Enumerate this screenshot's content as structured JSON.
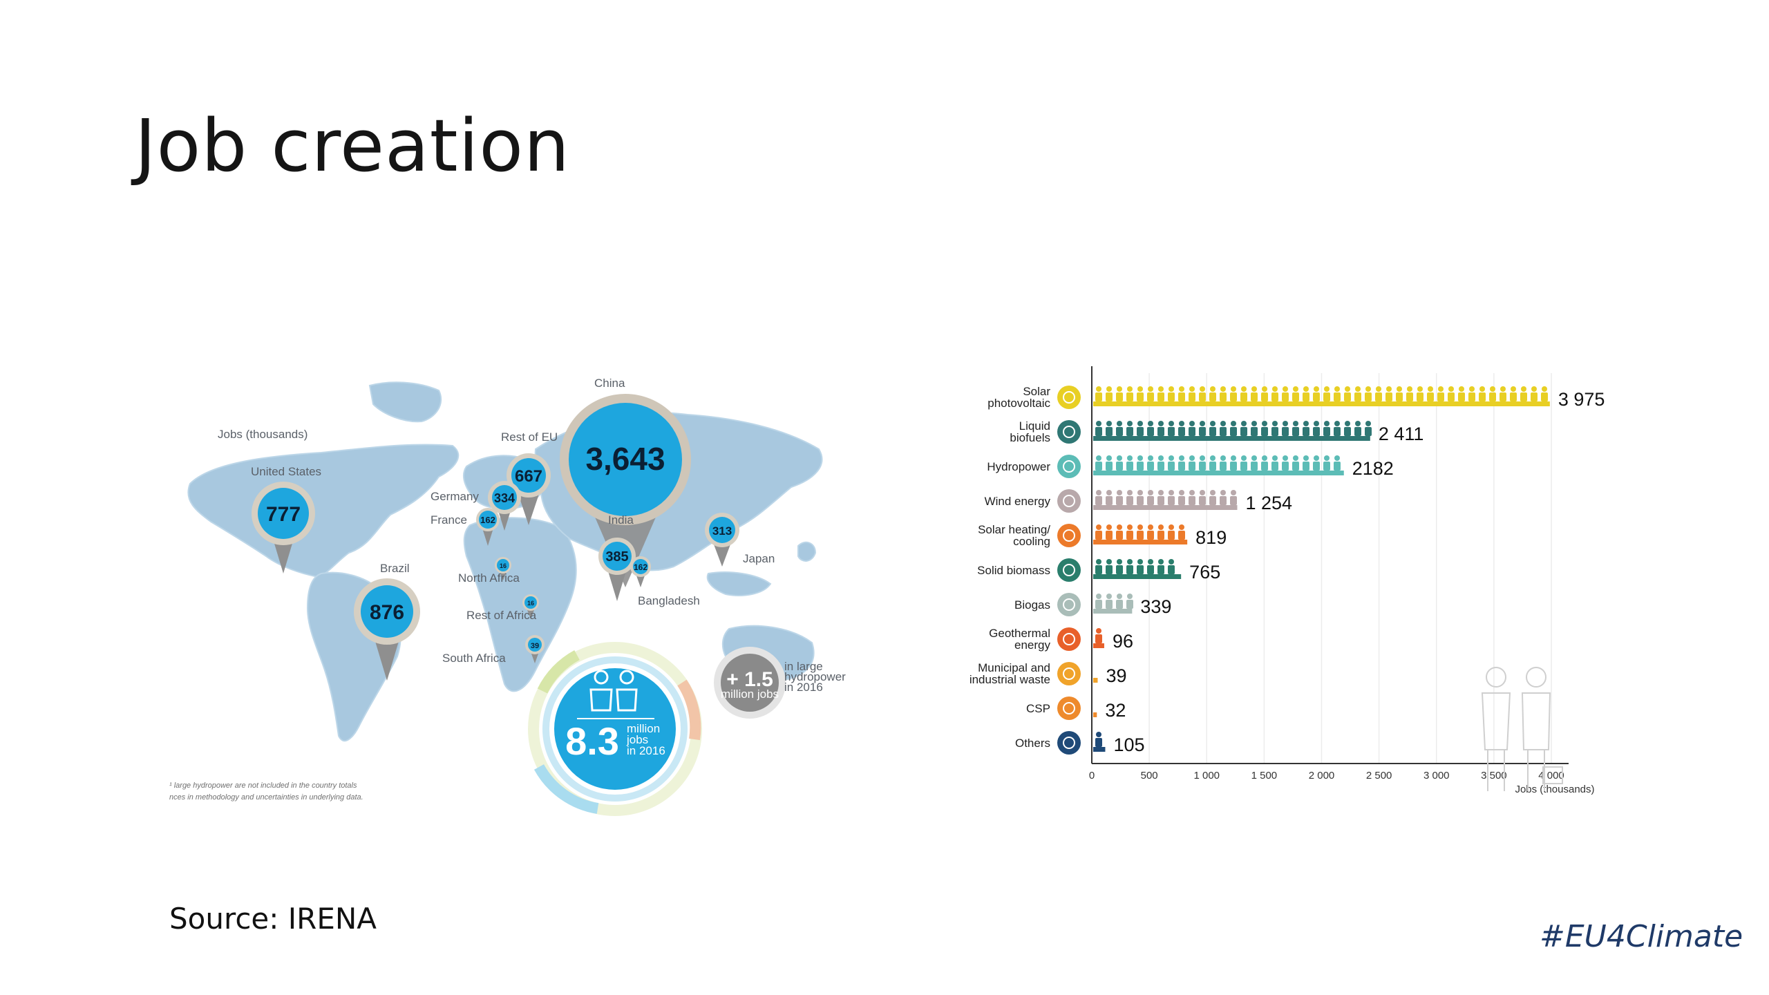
{
  "slide": {
    "title": "Job creation",
    "source": "Source: IRENA",
    "hashtag": "#EU4Climate"
  },
  "map": {
    "legend": "Jobs (thousands)",
    "regions": [
      {
        "name": "China",
        "value": "3,643",
        "icon": "map-pin-icon",
        "color": "#1ea6de"
      },
      {
        "name": "United States",
        "value": "777",
        "icon": "map-pin-icon"
      },
      {
        "name": "Brazil",
        "value": "876",
        "icon": "map-pin-icon"
      },
      {
        "name": "Rest of EU",
        "value": "667",
        "icon": "map-pin-icon"
      },
      {
        "name": "Germany",
        "value": "334",
        "icon": "map-pin-icon"
      },
      {
        "name": "France",
        "value": "162",
        "icon": "map-pin-icon"
      },
      {
        "name": "India",
        "value": "385",
        "icon": "map-pin-icon"
      },
      {
        "name": "Bangladesh",
        "value": "162",
        "icon": "map-pin-icon"
      },
      {
        "name": "Japan",
        "value": "313",
        "icon": "map-pin-icon"
      },
      {
        "name": "North Africa",
        "value": "16",
        "icon": "map-pin-icon"
      },
      {
        "name": "Rest of Africa",
        "value": "16",
        "icon": "map-pin-icon"
      },
      {
        "name": "South Africa",
        "value": "39",
        "icon": "map-pin-icon"
      }
    ],
    "total": {
      "value": "8.3",
      "line1": "million",
      "line2": "jobs",
      "line3": "in 2016",
      "icon": "workers-icon"
    },
    "extra": {
      "value": "+ 1.5",
      "sub": "million jobs",
      "line1": "in large",
      "line2": "hydropower",
      "line3": "in 2016"
    },
    "note1": "¹ large hydropower are not included in the country totals",
    "note2": "nces in methodology and uncertainties in underlying data."
  },
  "colors": {
    "ocean_pin": "#1ea6de",
    "map_land": "#a8c8df",
    "pin_shadow": "#8f8f8f",
    "hashtag": "#1f3a68"
  },
  "chart_data": {
    "type": "bar",
    "orientation": "horizontal",
    "categories": [
      "Solar photovoltaic",
      "Liquid biofuels",
      "Hydropower",
      "Wind energy",
      "Solar heating/ cooling",
      "Solid biomass",
      "Biogas",
      "Geothermal energy",
      "Municipal and industrial waste",
      "CSP",
      "Others"
    ],
    "values": [
      3975,
      2411,
      2182,
      1254,
      819,
      765,
      339,
      96,
      39,
      32,
      105
    ],
    "value_labels": [
      "3 975",
      "2 411",
      "2182",
      "1 254",
      "819",
      "765",
      "339",
      "96",
      "39",
      "32",
      "105"
    ],
    "colors": [
      "#e8cf24",
      "#2f7774",
      "#5cbcb6",
      "#b8a8aa",
      "#ec7a2a",
      "#2a7e6c",
      "#a9bdb8",
      "#e8602a",
      "#f0a32a",
      "#ee8a2c",
      "#1f4a78"
    ],
    "icons": [
      "sun-icon",
      "leaf-icon",
      "water-drop-icon",
      "wind-turbine-icon",
      "sun-gear-icon",
      "biomass-leaf-icon",
      "biogas-drop-icon",
      "geothermal-icon",
      "waste-bin-icon",
      "csp-sun-icon",
      "others-arrows-icon"
    ],
    "xlim": [
      0,
      4000
    ],
    "xticks": [
      0,
      500,
      1000,
      1500,
      2000,
      2500,
      3000,
      3500,
      4000
    ],
    "xtick_labels": [
      "0",
      "500",
      "1 000",
      "1 500",
      "2 000",
      "2 500",
      "3 000",
      "3 500",
      "4 000"
    ],
    "xlabel": "Jobs (thousands)",
    "grid": true
  }
}
